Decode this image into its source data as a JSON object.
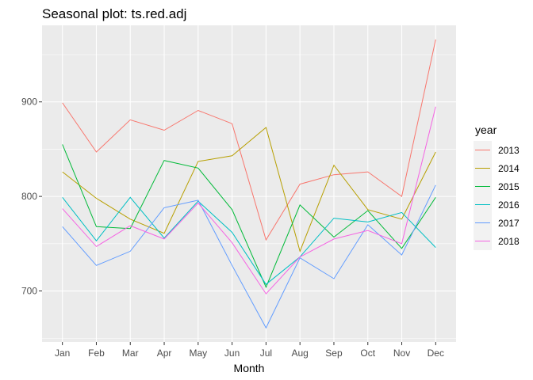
{
  "chart_data": {
    "type": "line",
    "title": "Seasonal plot: ts.red.adj",
    "xlabel": "Month",
    "ylabel": "",
    "categories": [
      "Jan",
      "Feb",
      "Mar",
      "Apr",
      "May",
      "Jun",
      "Jul",
      "Aug",
      "Sep",
      "Oct",
      "Nov",
      "Dec"
    ],
    "ylim": [
      646,
      981
    ],
    "yticks": [
      700,
      800,
      900
    ],
    "grid": true,
    "legend_title": "year",
    "legend_position": "right",
    "series": [
      {
        "name": "2013",
        "color": "#F8766D",
        "values": [
          899,
          847,
          881,
          870,
          891,
          877,
          754,
          813,
          823,
          826,
          800,
          966
        ]
      },
      {
        "name": "2014",
        "color": "#B79F00",
        "values": [
          826,
          798,
          776,
          761,
          837,
          843,
          873,
          742,
          833,
          786,
          776,
          847
        ]
      },
      {
        "name": "2015",
        "color": "#00BA38",
        "values": [
          855,
          768,
          766,
          838,
          830,
          786,
          704,
          791,
          757,
          785,
          745,
          799
        ]
      },
      {
        "name": "2016",
        "color": "#00BFC4",
        "values": [
          799,
          753,
          799,
          756,
          795,
          762,
          707,
          736,
          777,
          773,
          783,
          746
        ]
      },
      {
        "name": "2017",
        "color": "#619CFF",
        "values": [
          768,
          727,
          742,
          788,
          796,
          727,
          661,
          735,
          713,
          770,
          738,
          812
        ]
      },
      {
        "name": "2018",
        "color": "#F564E3",
        "values": [
          787,
          747,
          769,
          755,
          793,
          751,
          697,
          736,
          755,
          764,
          750,
          895
        ]
      }
    ]
  }
}
